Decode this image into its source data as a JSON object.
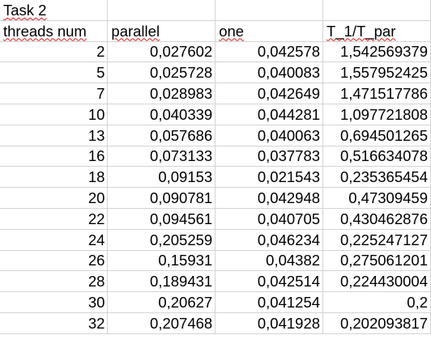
{
  "sheet": {
    "title": "Task 2",
    "headers": [
      "threads num",
      "parallel",
      "one",
      "T_1/T_par"
    ],
    "rows": [
      [
        "2",
        "0,027602",
        "0,042578",
        "1,542569379"
      ],
      [
        "5",
        "0,025728",
        "0,040083",
        "1,557952425"
      ],
      [
        "7",
        "0,028983",
        "0,042649",
        "1,471517786"
      ],
      [
        "10",
        "0,040339",
        "0,044281",
        "1,097721808"
      ],
      [
        "13",
        "0,057686",
        "0,040063",
        "0,694501265"
      ],
      [
        "16",
        "0,073133",
        "0,037783",
        "0,516634078"
      ],
      [
        "18",
        "0,09153",
        "0,021543",
        "0,235365454"
      ],
      [
        "20",
        "0,090781",
        "0,042948",
        "0,47309459"
      ],
      [
        "22",
        "0,094561",
        "0,040705",
        "0,430462876"
      ],
      [
        "24",
        "0,205259",
        "0,046234",
        "0,225247127"
      ],
      [
        "26",
        "0,15931",
        "0,04382",
        "0,275061201"
      ],
      [
        "28",
        "0,189431",
        "0,042514",
        "0,224430004"
      ],
      [
        "30",
        "0,20627",
        "0,041254",
        "0,2"
      ],
      [
        "32",
        "0,207468",
        "0,041928",
        "0,202093817"
      ]
    ]
  },
  "colors": {
    "gridline": "#d4d4d4",
    "spellcheck_underline": "#e01b1b"
  }
}
